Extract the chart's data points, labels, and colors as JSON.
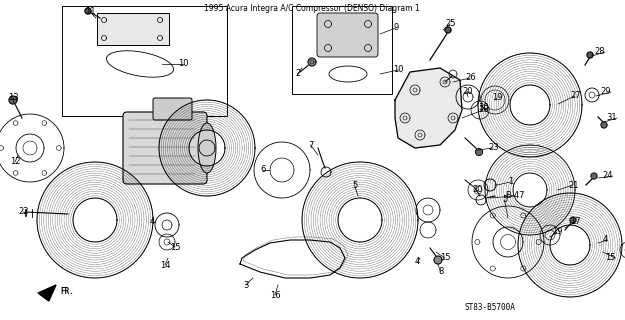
{
  "title": "1995 Acura Integra A/C Compressor (DENSO) Diagram 1",
  "background_color": "#ffffff",
  "diagram_code": "ST83-B5700A",
  "fig_width": 6.25,
  "fig_height": 3.2,
  "dpi": 100
}
